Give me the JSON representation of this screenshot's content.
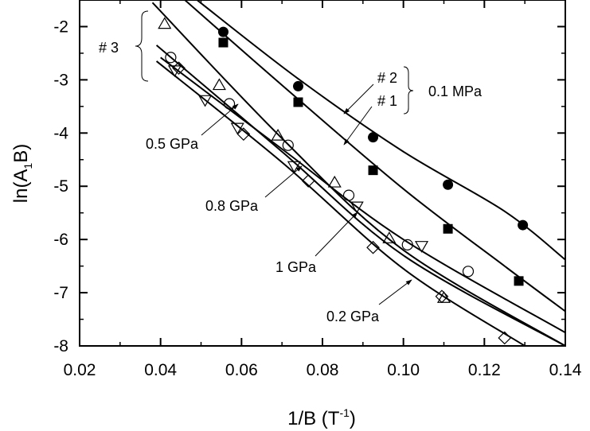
{
  "chart_data": {
    "type": "scatter",
    "title": "",
    "xlabel": {
      "main": "1/B (T",
      "sup": "-1",
      "tail": ")"
    },
    "ylabel": {
      "main": "ln(A",
      "sub": "1",
      "tail": "B)"
    },
    "xlim": [
      0.02,
      0.14
    ],
    "ylim": [
      -8,
      -1.5
    ],
    "xticks": [
      0.02,
      0.04,
      0.06,
      0.08,
      0.1,
      0.12,
      0.14
    ],
    "xtick_labels": [
      "0.02",
      "0.04",
      "0.06",
      "0.08",
      "0.10",
      "0.12",
      "0.14"
    ],
    "yticks": [
      -8,
      -7,
      -6,
      -5,
      -4,
      -3,
      -2
    ],
    "ytick_labels": [
      "-8",
      "-7",
      "-6",
      "-5",
      "-4",
      "-3",
      "-2"
    ],
    "grid": false,
    "series": [
      {
        "marker": "filled-circle",
        "x": [
          0.0555,
          0.074,
          0.0925,
          0.111,
          0.1295
        ],
        "y": [
          -2.1,
          -3.12,
          -4.08,
          -4.97,
          -5.73
        ]
      },
      {
        "marker": "filled-square",
        "x": [
          0.0555,
          0.074,
          0.0925,
          0.111,
          0.1285
        ],
        "y": [
          -2.3,
          -3.42,
          -4.7,
          -5.8,
          -6.78
        ]
      },
      {
        "marker": "open-circle",
        "x": [
          0.0425,
          0.057,
          0.0715,
          0.0865,
          0.101,
          0.116
        ],
        "y": [
          -2.58,
          -3.45,
          -4.23,
          -5.17,
          -6.1,
          -6.6
        ]
      },
      {
        "marker": "open-triangle-up",
        "x": [
          0.041,
          0.0545,
          0.069,
          0.083,
          0.0965,
          0.11
        ],
        "y": [
          -1.95,
          -3.1,
          -4.05,
          -4.93,
          -5.98,
          -7.1
        ]
      },
      {
        "marker": "open-triangle-down",
        "x": [
          0.0435,
          0.051,
          0.059,
          0.073,
          0.0885,
          0.1045
        ],
        "y": [
          -2.82,
          -3.38,
          -3.9,
          -4.62,
          -5.38,
          -6.12
        ]
      },
      {
        "marker": "open-diamond",
        "x": [
          0.0445,
          0.0605,
          0.0765,
          0.0925,
          0.1095,
          0.125
        ],
        "y": [
          -2.78,
          -4.02,
          -4.9,
          -6.15,
          -7.07,
          -7.85
        ]
      }
    ],
    "fit_lines": [
      {
        "points": [
          [
            0.049,
            -1.5
          ],
          [
            0.074,
            -2.98
          ],
          [
            0.1,
            -4.35
          ],
          [
            0.125,
            -5.47
          ],
          [
            0.14,
            -6.38
          ]
        ]
      },
      {
        "points": [
          [
            0.046,
            -1.5
          ],
          [
            0.07,
            -3.1
          ],
          [
            0.1,
            -5.05
          ],
          [
            0.125,
            -6.5
          ],
          [
            0.14,
            -7.35
          ]
        ]
      },
      {
        "points": [
          [
            0.04,
            -2.58
          ],
          [
            0.07,
            -4.3
          ],
          [
            0.1,
            -6.0
          ],
          [
            0.14,
            -7.75
          ]
        ]
      },
      {
        "points": [
          [
            0.038,
            -1.55
          ],
          [
            0.07,
            -4.1
          ],
          [
            0.1,
            -6.2
          ],
          [
            0.14,
            -8.0
          ]
        ]
      },
      {
        "points": [
          [
            0.039,
            -2.35
          ],
          [
            0.07,
            -4.35
          ],
          [
            0.1,
            -6.3
          ],
          [
            0.14,
            -8.0
          ]
        ]
      },
      {
        "points": [
          [
            0.039,
            -2.65
          ],
          [
            0.07,
            -4.55
          ],
          [
            0.1,
            -6.55
          ],
          [
            0.13,
            -8.0
          ]
        ]
      }
    ],
    "annotations": [
      {
        "text": "# 3"
      },
      {
        "text": "# 2"
      },
      {
        "text": "# 1"
      },
      {
        "text": "0.1 MPa"
      },
      {
        "text": "0.5 GPa"
      },
      {
        "text": "0.8 GPa"
      },
      {
        "text": "1 GPa"
      },
      {
        "text": "0.2 GPa"
      }
    ]
  }
}
